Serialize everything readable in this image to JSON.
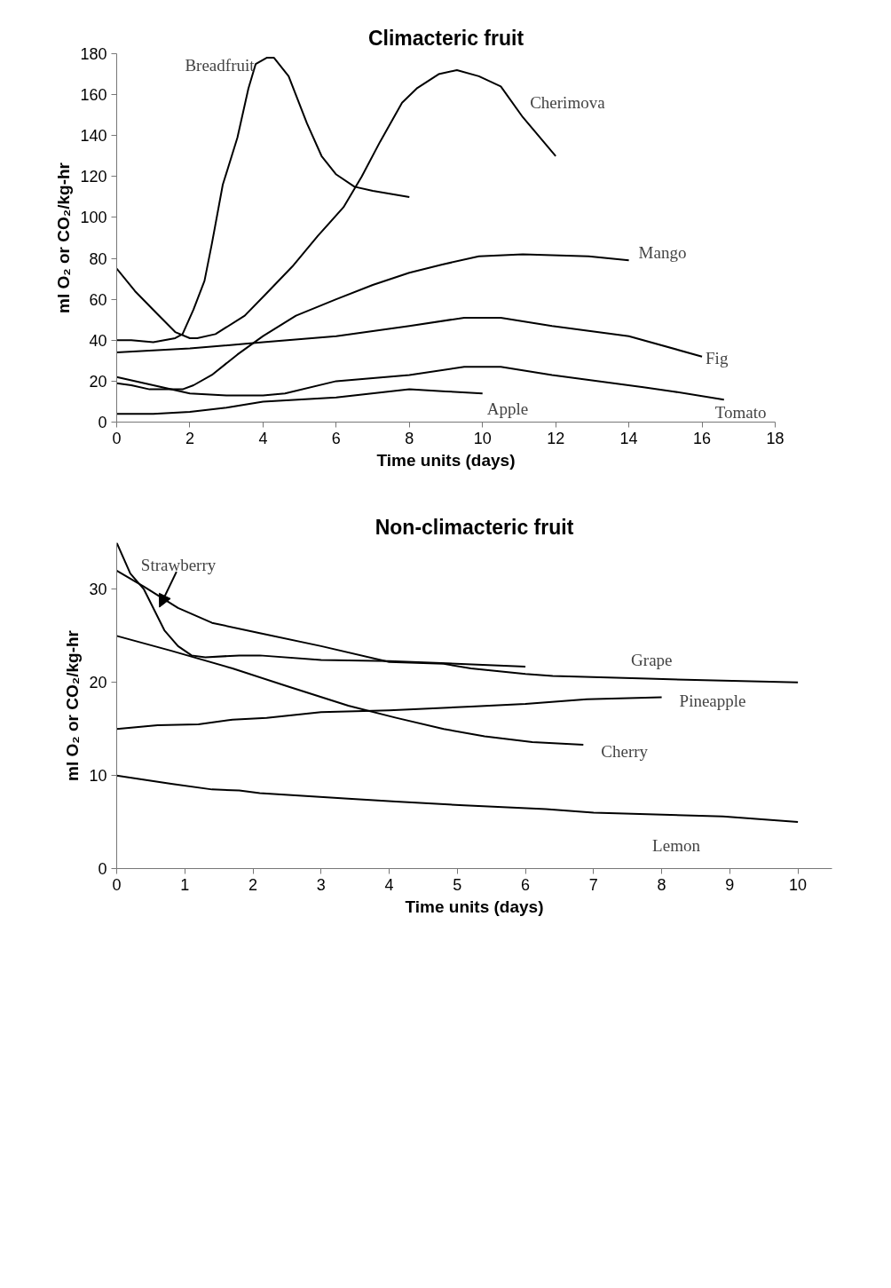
{
  "chart_data": [
    {
      "type": "line",
      "title": "Climacteric fruit",
      "xlabel": "Time units (days)",
      "ylabel": "ml O₂ or CO₂/kg-hr",
      "xlim": [
        0,
        18
      ],
      "ylim": [
        0,
        180
      ],
      "xticks": [
        0,
        2,
        4,
        6,
        8,
        10,
        12,
        14,
        16,
        18
      ],
      "yticks": [
        0,
        20,
        40,
        60,
        80,
        100,
        120,
        140,
        160,
        180
      ],
      "grid": false,
      "line_style": "solid",
      "series": [
        {
          "name": "Breadfruit",
          "color": "#000000",
          "x": [
            0,
            0.4,
            1,
            1.6,
            1.8,
            2.1,
            2.4,
            2.6,
            2.9,
            3.3,
            3.6,
            3.8,
            4.1,
            4.3,
            4.7,
            5.2,
            5.6,
            6,
            6.5,
            7,
            8
          ],
          "values": [
            40,
            40,
            39,
            41,
            43,
            55,
            69,
            87,
            116,
            139,
            163,
            175,
            178,
            178,
            169,
            146,
            130,
            121,
            115,
            113,
            110
          ]
        },
        {
          "name": "Cherimova",
          "color": "#000000",
          "x": [
            0,
            0.5,
            1.1,
            1.6,
            2,
            2.2,
            2.7,
            3.5,
            4.1,
            4.8,
            5.5,
            6.2,
            6.7,
            7.2,
            7.8,
            8.2,
            8.8,
            9.3,
            9.9,
            10.5,
            11.1,
            12
          ],
          "values": [
            75,
            64,
            53,
            44,
            41,
            41,
            43,
            52,
            63,
            76,
            91,
            105,
            120,
            137,
            156,
            163,
            170,
            172,
            169,
            164,
            149,
            130
          ]
        },
        {
          "name": "Mango",
          "color": "#000000",
          "x": [
            0,
            0.4,
            0.9,
            1.8,
            2.1,
            2.6,
            3.3,
            4,
            4.9,
            6,
            7,
            8,
            8.9,
            9.9,
            11.1,
            12.9,
            14
          ],
          "values": [
            19,
            18,
            16,
            16,
            18,
            23,
            33,
            42,
            52,
            60,
            67,
            73,
            77,
            81,
            82,
            81,
            79
          ]
        },
        {
          "name": "Fig",
          "color": "#000000",
          "x": [
            0,
            2,
            4,
            6,
            8,
            9.5,
            10.5,
            11.9,
            14,
            16
          ],
          "values": [
            34,
            36,
            39,
            42,
            47,
            51,
            51,
            47,
            42,
            32
          ]
        },
        {
          "name": "Tomato",
          "color": "#000000",
          "x": [
            0,
            2,
            3,
            4,
            4.6,
            6,
            8,
            9.5,
            10.5,
            11.9,
            14.4,
            15.2,
            16.6
          ],
          "values": [
            22,
            14,
            13,
            13,
            14,
            20,
            23,
            27,
            27,
            23,
            17,
            15,
            11
          ]
        },
        {
          "name": "Apple",
          "color": "#000000",
          "x": [
            0,
            1,
            2,
            3,
            4,
            6,
            8,
            9,
            10
          ],
          "values": [
            4,
            4,
            5,
            7,
            10,
            12,
            16,
            15,
            14
          ]
        }
      ]
    },
    {
      "type": "line",
      "title": "Non-climacteric fruit",
      "xlabel": "Time units (days)",
      "ylabel": "ml O₂ or CO₂/kg-hr",
      "xlim": [
        0,
        10.5
      ],
      "ylim": [
        0,
        35
      ],
      "xticks": [
        0,
        1,
        2,
        3,
        4,
        5,
        6,
        7,
        8,
        9,
        10
      ],
      "yticks": [
        0,
        10,
        20,
        30
      ],
      "grid": false,
      "line_style": "solid",
      "series": [
        {
          "name": "Strawberry",
          "color": "#000000",
          "x": [
            0,
            0.2,
            0.4,
            0.55,
            0.7,
            0.9,
            1.1,
            1.3,
            1.8,
            2.1,
            3,
            4,
            6
          ],
          "values": [
            35,
            31.7,
            30,
            27.8,
            25.6,
            23.9,
            22.9,
            22.7,
            22.9,
            22.9,
            22.4,
            22.3,
            21.7
          ]
        },
        {
          "name": "Grape",
          "color": "#000000",
          "x": [
            0,
            0.4,
            0.9,
            1.4,
            2.1,
            3,
            4,
            4.8,
            5.2,
            6,
            6.4,
            7.8,
            10
          ],
          "values": [
            32,
            30.3,
            28,
            26.4,
            25.3,
            23.9,
            22.2,
            22,
            21.5,
            20.9,
            20.7,
            20.4,
            20
          ]
        },
        {
          "name": "Pineapple",
          "color": "#000000",
          "x": [
            0,
            0.6,
            1.2,
            1.7,
            2.2,
            3,
            4,
            5.2,
            6,
            6.9,
            8
          ],
          "values": [
            15,
            15.4,
            15.5,
            16,
            16.2,
            16.8,
            17,
            17.4,
            17.7,
            18.2,
            18.4
          ]
        },
        {
          "name": "Cherry",
          "color": "#000000",
          "x": [
            0,
            0.8,
            1.7,
            2.5,
            3.4,
            4.1,
            4.8,
            5.4,
            6.1,
            6.85
          ],
          "values": [
            25,
            23.4,
            21.5,
            19.6,
            17.5,
            16.2,
            15,
            14.2,
            13.6,
            13.3
          ]
        },
        {
          "name": "Lemon",
          "color": "#000000",
          "x": [
            0,
            0.8,
            1.4,
            1.8,
            2.1,
            3.4,
            4.1,
            5.1,
            6.3,
            7,
            8.9,
            10
          ],
          "values": [
            10,
            9.1,
            8.5,
            8.4,
            8.1,
            7.5,
            7.2,
            6.8,
            6.4,
            6,
            5.6,
            5
          ]
        }
      ]
    }
  ]
}
